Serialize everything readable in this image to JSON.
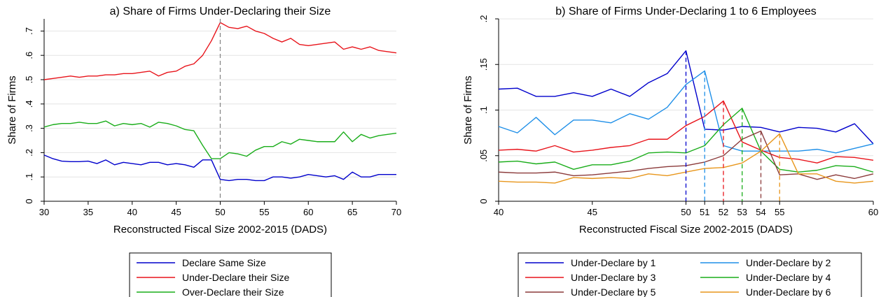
{
  "chart_data": [
    {
      "type": "line",
      "title": "a) Share of Firms Under-Declaring their Size",
      "xlabel": "Reconstructed Fiscal Size 2002-2015 (DADS)",
      "ylabel": "Share of Firms",
      "xlim": [
        30,
        70
      ],
      "ylim": [
        0,
        0.75
      ],
      "xticks": [
        30,
        35,
        40,
        45,
        50,
        55,
        60,
        65,
        70
      ],
      "yticks": [
        0,
        0.1,
        0.2,
        0.3,
        0.4,
        0.5,
        0.6,
        0.7
      ],
      "ytick_labels": [
        "0",
        ".1",
        ".2",
        ".3",
        ".4",
        ".5",
        ".6",
        ".7"
      ],
      "vline": 50,
      "grid": true,
      "legend_position": "bottom",
      "x": [
        30,
        31,
        32,
        33,
        34,
        35,
        36,
        37,
        38,
        39,
        40,
        41,
        42,
        43,
        44,
        45,
        46,
        47,
        48,
        49,
        50,
        51,
        52,
        53,
        54,
        55,
        56,
        57,
        58,
        59,
        60,
        61,
        62,
        63,
        64,
        65,
        66,
        67,
        68,
        69,
        70
      ],
      "series": [
        {
          "name": "Declare Same Size",
          "color": "#0000cc",
          "values": [
            0.19,
            0.175,
            0.165,
            0.163,
            0.163,
            0.165,
            0.155,
            0.17,
            0.15,
            0.16,
            0.155,
            0.15,
            0.16,
            0.16,
            0.15,
            0.155,
            0.15,
            0.14,
            0.17,
            0.17,
            0.09,
            0.085,
            0.09,
            0.09,
            0.085,
            0.085,
            0.1,
            0.1,
            0.095,
            0.1,
            0.11,
            0.105,
            0.1,
            0.105,
            0.09,
            0.12,
            0.1,
            0.1,
            0.11,
            0.11,
            0.11
          ]
        },
        {
          "name": "Under-Declare their Size",
          "color": "#e8141b",
          "values": [
            0.5,
            0.505,
            0.51,
            0.515,
            0.51,
            0.515,
            0.515,
            0.52,
            0.52,
            0.525,
            0.525,
            0.53,
            0.535,
            0.515,
            0.53,
            0.535,
            0.555,
            0.565,
            0.6,
            0.66,
            0.735,
            0.715,
            0.71,
            0.72,
            0.7,
            0.69,
            0.67,
            0.655,
            0.67,
            0.645,
            0.64,
            0.645,
            0.65,
            0.655,
            0.625,
            0.635,
            0.625,
            0.635,
            0.62,
            0.615,
            0.61
          ]
        },
        {
          "name": "Over-Declare their Size",
          "color": "#1aad1a",
          "values": [
            0.305,
            0.315,
            0.32,
            0.32,
            0.325,
            0.32,
            0.32,
            0.33,
            0.31,
            0.32,
            0.315,
            0.32,
            0.305,
            0.325,
            0.32,
            0.31,
            0.295,
            0.29,
            0.23,
            0.175,
            0.175,
            0.2,
            0.195,
            0.185,
            0.21,
            0.225,
            0.225,
            0.245,
            0.235,
            0.255,
            0.25,
            0.245,
            0.245,
            0.245,
            0.285,
            0.245,
            0.275,
            0.26,
            0.27,
            0.275,
            0.28
          ]
        }
      ]
    },
    {
      "type": "line",
      "title": "b) Share of Firms Under-Declaring 1 to 6 Employees",
      "xlabel": "Reconstructed Fiscal Size 2002-2015 (DADS)",
      "ylabel": "Share of Firms",
      "xlim": [
        40,
        60
      ],
      "ylim": [
        0,
        0.2
      ],
      "xticks": [
        40,
        45,
        50,
        51,
        52,
        53,
        54,
        55,
        60
      ],
      "yticks": [
        0,
        0.05,
        0.1,
        0.15,
        0.2
      ],
      "ytick_labels": [
        "0",
        ".05",
        ".1",
        ".15",
        ".2"
      ],
      "vlines": [
        50,
        51,
        52,
        53,
        54,
        55
      ],
      "grid": true,
      "legend_position": "bottom",
      "x": [
        40,
        41,
        42,
        43,
        44,
        45,
        46,
        47,
        48,
        49,
        50,
        51,
        52,
        53,
        54,
        55,
        56,
        57,
        58,
        59,
        60
      ],
      "series": [
        {
          "name": "Under-Declare by 1",
          "color": "#0000cc",
          "values": [
            0.123,
            0.124,
            0.115,
            0.115,
            0.119,
            0.115,
            0.123,
            0.115,
            0.13,
            0.14,
            0.165,
            0.079,
            0.078,
            0.082,
            0.081,
            0.076,
            0.081,
            0.08,
            0.076,
            0.085,
            0.063
          ]
        },
        {
          "name": "Under-Declare by 2",
          "color": "#1e8fe8",
          "values": [
            0.082,
            0.075,
            0.092,
            0.073,
            0.089,
            0.089,
            0.086,
            0.096,
            0.09,
            0.103,
            0.128,
            0.143,
            0.061,
            0.055,
            0.055,
            0.055,
            0.055,
            0.057,
            0.053,
            0.058,
            0.063
          ]
        },
        {
          "name": "Under-Declare by 3",
          "color": "#e8141b",
          "values": [
            0.056,
            0.057,
            0.055,
            0.061,
            0.054,
            0.056,
            0.059,
            0.061,
            0.068,
            0.068,
            0.083,
            0.093,
            0.11,
            0.065,
            0.056,
            0.048,
            0.046,
            0.042,
            0.049,
            0.048,
            0.045
          ]
        },
        {
          "name": "Under-Declare by 4",
          "color": "#1aad1a",
          "values": [
            0.043,
            0.044,
            0.041,
            0.043,
            0.035,
            0.04,
            0.04,
            0.044,
            0.053,
            0.054,
            0.053,
            0.061,
            0.084,
            0.102,
            0.055,
            0.035,
            0.032,
            0.034,
            0.039,
            0.038,
            0.032
          ]
        },
        {
          "name": "Under-Declare by 5",
          "color": "#8b3a3a",
          "values": [
            0.032,
            0.031,
            0.031,
            0.032,
            0.028,
            0.029,
            0.031,
            0.033,
            0.036,
            0.038,
            0.039,
            0.043,
            0.05,
            0.068,
            0.077,
            0.029,
            0.03,
            0.024,
            0.029,
            0.025,
            0.03
          ]
        },
        {
          "name": "Under-Declare by 6",
          "color": "#e8961b",
          "values": [
            0.022,
            0.021,
            0.021,
            0.02,
            0.026,
            0.025,
            0.026,
            0.025,
            0.03,
            0.028,
            0.032,
            0.036,
            0.037,
            0.042,
            0.055,
            0.074,
            0.03,
            0.03,
            0.022,
            0.02,
            0.022
          ]
        }
      ]
    }
  ]
}
